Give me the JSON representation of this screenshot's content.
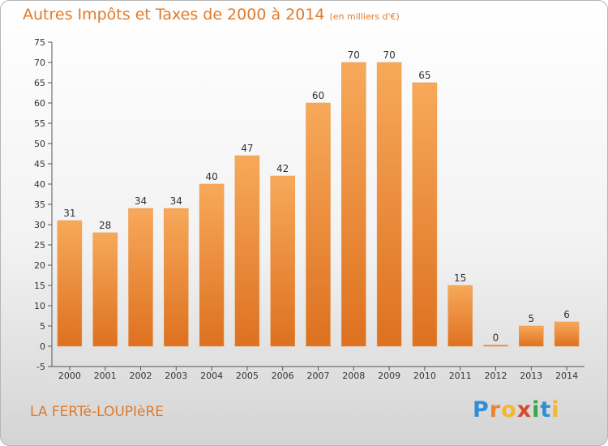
{
  "title": "Autres Impôts et Taxes de 2000 à 2014",
  "unit": "(en milliers d'€)",
  "commune": "LA FERTé-LOUPIèRE",
  "logo": [
    "P",
    "r",
    "o",
    "x",
    "i",
    "t",
    "i"
  ],
  "colors": {
    "bar_top": "#f7a95a",
    "bar_bottom": "#dd7120",
    "title": "#e07b2b"
  },
  "chart_data": {
    "type": "bar",
    "title": "Autres Impôts et Taxes de 2000 à 2014",
    "subtitle": "(en milliers d'€)",
    "categories": [
      "2000",
      "2001",
      "2002",
      "2003",
      "2004",
      "2005",
      "2006",
      "2007",
      "2008",
      "2009",
      "2010",
      "2011",
      "2012",
      "2013",
      "2014"
    ],
    "values": [
      31,
      28,
      34,
      34,
      40,
      47,
      42,
      60,
      70,
      70,
      65,
      15,
      0,
      5,
      6
    ],
    "ylim": [
      -5,
      75
    ],
    "yticks": [
      -5,
      0,
      5,
      10,
      15,
      20,
      25,
      30,
      35,
      40,
      45,
      50,
      55,
      60,
      65,
      70,
      75
    ],
    "grid": false,
    "xlabel": "",
    "ylabel": ""
  }
}
